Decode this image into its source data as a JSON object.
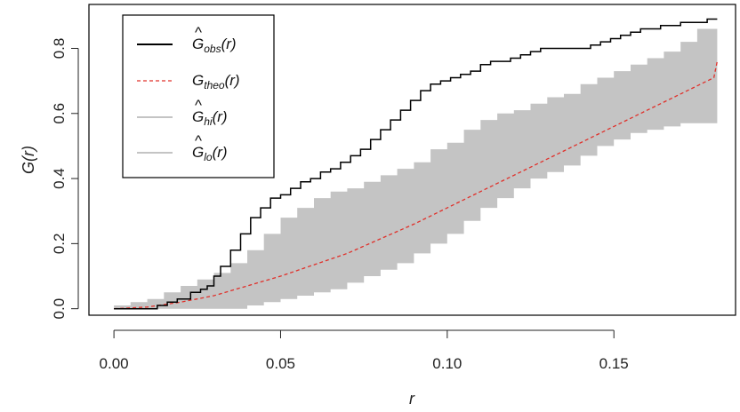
{
  "chart_data": {
    "type": "line",
    "xlabel": "r",
    "ylabel": "G(r)",
    "xlim": [
      -0.0075,
      0.1865
    ],
    "ylim": [
      -0.02,
      0.935
    ],
    "x_ticks": [
      "0.00",
      "0.05",
      "0.10",
      "0.15"
    ],
    "x_tick_values": [
      0.0,
      0.05,
      0.1,
      0.15
    ],
    "y_ticks": [
      "0.0",
      "0.2",
      "0.4",
      "0.6",
      "0.8"
    ],
    "y_tick_values": [
      0.0,
      0.2,
      0.4,
      0.6,
      0.8
    ],
    "grid": false,
    "legend_position": "top-left",
    "legend": [
      {
        "base": "G",
        "hat": true,
        "sub": "obs",
        "suffix": "(r)",
        "style": "solid",
        "color": "#000000"
      },
      {
        "base": "G",
        "hat": false,
        "sub": "theo",
        "suffix": "(r)",
        "style": "dashed",
        "color": "#e0302a"
      },
      {
        "base": "G",
        "hat": true,
        "sub": "hi",
        "suffix": "(r)",
        "style": "solid",
        "color": "#c4c4c4"
      },
      {
        "base": "G",
        "hat": true,
        "sub": "lo",
        "suffix": "(r)",
        "style": "solid",
        "color": "#c4c4c4"
      }
    ],
    "series": [
      {
        "key": "obs",
        "color": "#000000",
        "x": [
          0,
          0.012,
          0.013,
          0.016,
          0.019,
          0.021,
          0.023,
          0.026,
          0.028,
          0.03,
          0.032,
          0.035,
          0.038,
          0.041,
          0.044,
          0.047,
          0.05,
          0.053,
          0.056,
          0.059,
          0.062,
          0.065,
          0.068,
          0.071,
          0.074,
          0.077,
          0.08,
          0.083,
          0.086,
          0.089,
          0.092,
          0.095,
          0.098,
          0.101,
          0.104,
          0.107,
          0.11,
          0.113,
          0.116,
          0.119,
          0.122,
          0.125,
          0.128,
          0.131,
          0.134,
          0.137,
          0.14,
          0.143,
          0.146,
          0.149,
          0.152,
          0.155,
          0.158,
          0.161,
          0.164,
          0.167,
          0.17,
          0.173,
          0.176,
          0.178,
          0.181
        ],
        "y": [
          0,
          0,
          0.01,
          0.02,
          0.03,
          0.03,
          0.05,
          0.06,
          0.07,
          0.1,
          0.13,
          0.18,
          0.23,
          0.28,
          0.31,
          0.34,
          0.35,
          0.37,
          0.39,
          0.4,
          0.42,
          0.43,
          0.45,
          0.47,
          0.49,
          0.52,
          0.55,
          0.58,
          0.61,
          0.64,
          0.67,
          0.69,
          0.7,
          0.71,
          0.72,
          0.73,
          0.75,
          0.76,
          0.76,
          0.77,
          0.78,
          0.79,
          0.8,
          0.8,
          0.8,
          0.8,
          0.8,
          0.81,
          0.82,
          0.83,
          0.84,
          0.85,
          0.86,
          0.86,
          0.87,
          0.87,
          0.88,
          0.88,
          0.88,
          0.89,
          0.89
        ]
      },
      {
        "key": "theo",
        "color": "#e0302a",
        "x": [
          0,
          0.01,
          0.02,
          0.03,
          0.04,
          0.05,
          0.06,
          0.07,
          0.08,
          0.09,
          0.1,
          0.11,
          0.12,
          0.13,
          0.14,
          0.15,
          0.16,
          0.17,
          0.18,
          0.181
        ],
        "y": [
          0,
          0.005,
          0.02,
          0.04,
          0.07,
          0.1,
          0.135,
          0.17,
          0.215,
          0.26,
          0.31,
          0.36,
          0.41,
          0.46,
          0.51,
          0.56,
          0.61,
          0.66,
          0.71,
          0.76
        ]
      },
      {
        "key": "hi",
        "color": "#c4c4c4",
        "x": [
          0,
          0.005,
          0.01,
          0.015,
          0.02,
          0.025,
          0.03,
          0.035,
          0.04,
          0.045,
          0.05,
          0.055,
          0.06,
          0.065,
          0.07,
          0.075,
          0.08,
          0.085,
          0.09,
          0.095,
          0.1,
          0.105,
          0.11,
          0.115,
          0.12,
          0.125,
          0.13,
          0.135,
          0.14,
          0.145,
          0.15,
          0.155,
          0.16,
          0.165,
          0.17,
          0.175,
          0.181
        ],
        "y": [
          0.01,
          0.02,
          0.03,
          0.05,
          0.07,
          0.09,
          0.11,
          0.14,
          0.18,
          0.23,
          0.28,
          0.31,
          0.34,
          0.36,
          0.37,
          0.39,
          0.41,
          0.43,
          0.45,
          0.49,
          0.51,
          0.55,
          0.58,
          0.6,
          0.61,
          0.63,
          0.65,
          0.66,
          0.69,
          0.71,
          0.73,
          0.75,
          0.77,
          0.79,
          0.82,
          0.86,
          0.86
        ]
      },
      {
        "key": "lo",
        "color": "#c4c4c4",
        "x": [
          0,
          0.005,
          0.01,
          0.015,
          0.02,
          0.025,
          0.03,
          0.035,
          0.04,
          0.045,
          0.05,
          0.055,
          0.06,
          0.065,
          0.07,
          0.075,
          0.08,
          0.085,
          0.09,
          0.095,
          0.1,
          0.105,
          0.11,
          0.115,
          0.12,
          0.125,
          0.13,
          0.135,
          0.14,
          0.145,
          0.15,
          0.155,
          0.16,
          0.165,
          0.17,
          0.175,
          0.181
        ],
        "y": [
          0,
          0,
          0,
          0,
          0,
          0,
          0,
          0,
          0.01,
          0.02,
          0.03,
          0.04,
          0.05,
          0.06,
          0.08,
          0.1,
          0.12,
          0.14,
          0.17,
          0.2,
          0.23,
          0.27,
          0.31,
          0.34,
          0.37,
          0.4,
          0.42,
          0.44,
          0.47,
          0.5,
          0.52,
          0.54,
          0.55,
          0.56,
          0.57,
          0.57,
          0.57
        ]
      }
    ]
  }
}
